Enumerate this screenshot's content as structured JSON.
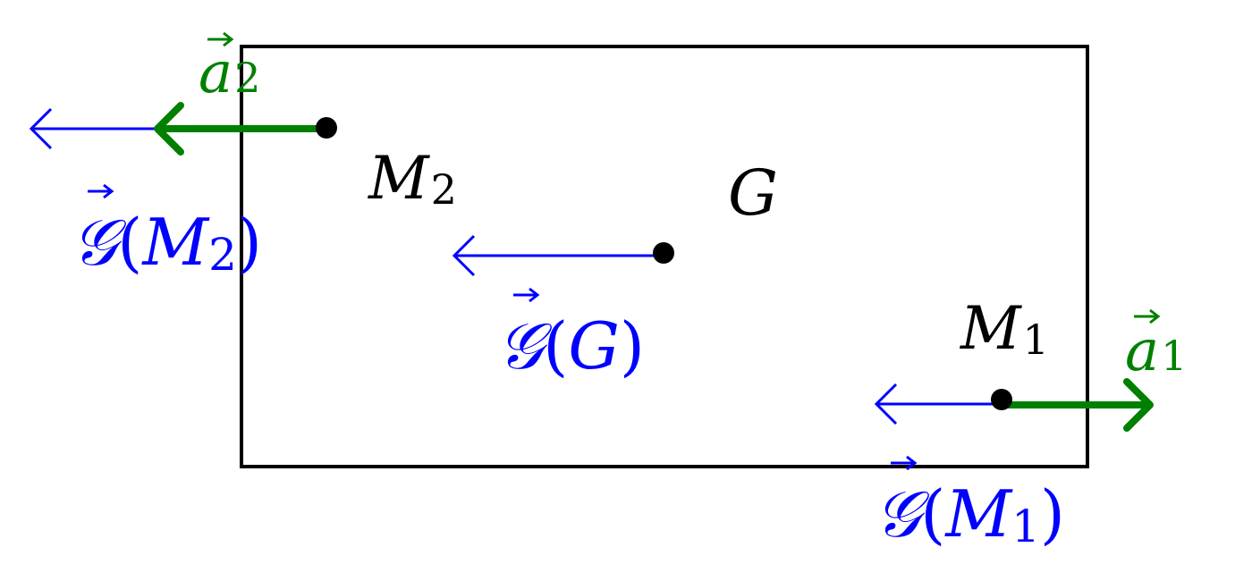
{
  "colors": {
    "body": "#000000",
    "gravity": "#0000ff",
    "acceleration": "#008000"
  },
  "points": {
    "m2": {
      "label": "M",
      "sub": "2"
    },
    "g": {
      "label": "G"
    },
    "m1": {
      "label": "M",
      "sub": "1"
    }
  },
  "vectors": {
    "a2": {
      "symbol": "a",
      "sub": "2"
    },
    "a1": {
      "symbol": "a",
      "sub": "1"
    },
    "grav_m2": {
      "symbol": "𝒢",
      "open": "(",
      "arg": "M",
      "sub": "2",
      "close": ")"
    },
    "grav_g": {
      "symbol": "𝒢",
      "open": "(",
      "arg": "G",
      "close": ")"
    },
    "grav_m1": {
      "symbol": "𝒢",
      "open": "(",
      "arg": "M",
      "sub": "1",
      "close": ")"
    }
  }
}
